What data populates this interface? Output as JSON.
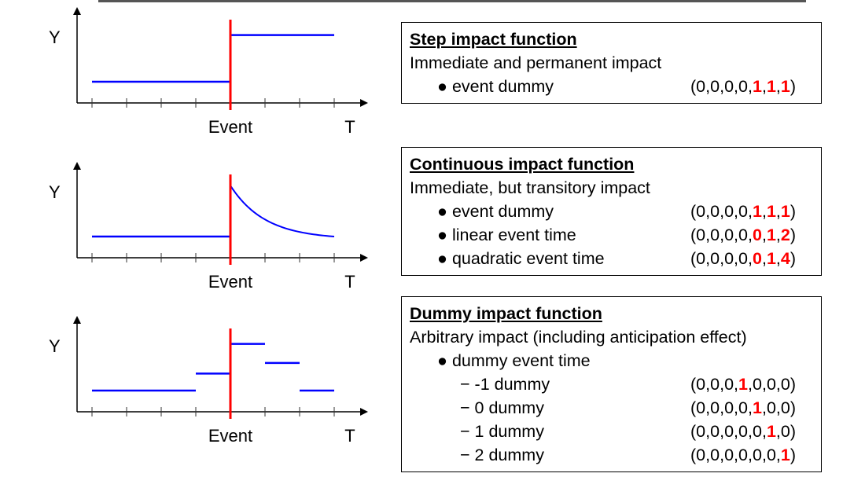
{
  "axis_labels": {
    "y": "Y",
    "x": "T",
    "event": "Event"
  },
  "colors": {
    "series": "#0000ff",
    "event_line": "#ff0000",
    "highlight": "#ff0000"
  },
  "chart_data": [
    {
      "type": "line",
      "name": "step",
      "ticks": 8,
      "event_tick": 4,
      "segments": [
        {
          "x": [
            0,
            4
          ],
          "y": [
            1,
            1
          ]
        },
        {
          "x": [
            4,
            7
          ],
          "y": [
            3.2,
            3.2
          ]
        }
      ]
    },
    {
      "type": "line",
      "name": "continuous",
      "ticks": 8,
      "event_tick": 4,
      "segments": [
        {
          "x": [
            0,
            4
          ],
          "y": [
            1,
            1
          ]
        }
      ],
      "decay": {
        "x0": 4,
        "x1": 7,
        "start": 3.4,
        "end": 1
      }
    },
    {
      "type": "line",
      "name": "dummy",
      "ticks": 8,
      "event_tick": 4,
      "segments": [
        {
          "x": [
            0,
            3
          ],
          "y": [
            1,
            1
          ]
        },
        {
          "x": [
            3,
            4
          ],
          "y": [
            1.8,
            1.8
          ]
        },
        {
          "x": [
            4,
            5
          ],
          "y": [
            3.2,
            3.2
          ]
        },
        {
          "x": [
            5,
            6
          ],
          "y": [
            2.3,
            2.3
          ]
        },
        {
          "x": [
            6,
            7
          ],
          "y": [
            1,
            1
          ]
        }
      ]
    }
  ],
  "boxes": [
    {
      "title": "Step impact function",
      "subtitle": "Immediate and permanent impact",
      "items": [
        {
          "kind": "bullet",
          "label": "event dummy",
          "code": {
            "values": [
              0,
              0,
              0,
              0,
              1,
              1,
              1
            ],
            "highlight": [
              4,
              5,
              6
            ]
          }
        }
      ]
    },
    {
      "title": "Continuous impact function",
      "subtitle": "Immediate, but transitory impact",
      "items": [
        {
          "kind": "bullet",
          "label": "event dummy",
          "code": {
            "values": [
              0,
              0,
              0,
              0,
              1,
              1,
              1
            ],
            "highlight": [
              4,
              5,
              6
            ]
          }
        },
        {
          "kind": "bullet",
          "label": "linear event time",
          "code": {
            "values": [
              0,
              0,
              0,
              0,
              0,
              1,
              2
            ],
            "highlight": [
              4,
              5,
              6
            ]
          }
        },
        {
          "kind": "bullet",
          "label": "quadratic event time",
          "code": {
            "values": [
              0,
              0,
              0,
              0,
              0,
              1,
              4
            ],
            "highlight": [
              4,
              5,
              6
            ]
          }
        }
      ]
    },
    {
      "title": "Dummy impact function",
      "subtitle": "Arbitrary impact (including anticipation effect)",
      "items": [
        {
          "kind": "bullet",
          "label": "dummy event time"
        },
        {
          "kind": "dash",
          "label": "-1 dummy",
          "code": {
            "values": [
              0,
              0,
              0,
              1,
              0,
              0,
              0
            ],
            "highlight": [
              3
            ]
          }
        },
        {
          "kind": "dash",
          "label": "0 dummy",
          "code": {
            "values": [
              0,
              0,
              0,
              0,
              1,
              0,
              0
            ],
            "highlight": [
              4
            ]
          }
        },
        {
          "kind": "dash",
          "label": "1 dummy",
          "code": {
            "values": [
              0,
              0,
              0,
              0,
              0,
              1,
              0
            ],
            "highlight": [
              5
            ]
          }
        },
        {
          "kind": "dash",
          "label": "2 dummy",
          "code": {
            "values": [
              0,
              0,
              0,
              0,
              0,
              0,
              1
            ],
            "highlight": [
              6
            ]
          }
        }
      ]
    }
  ]
}
